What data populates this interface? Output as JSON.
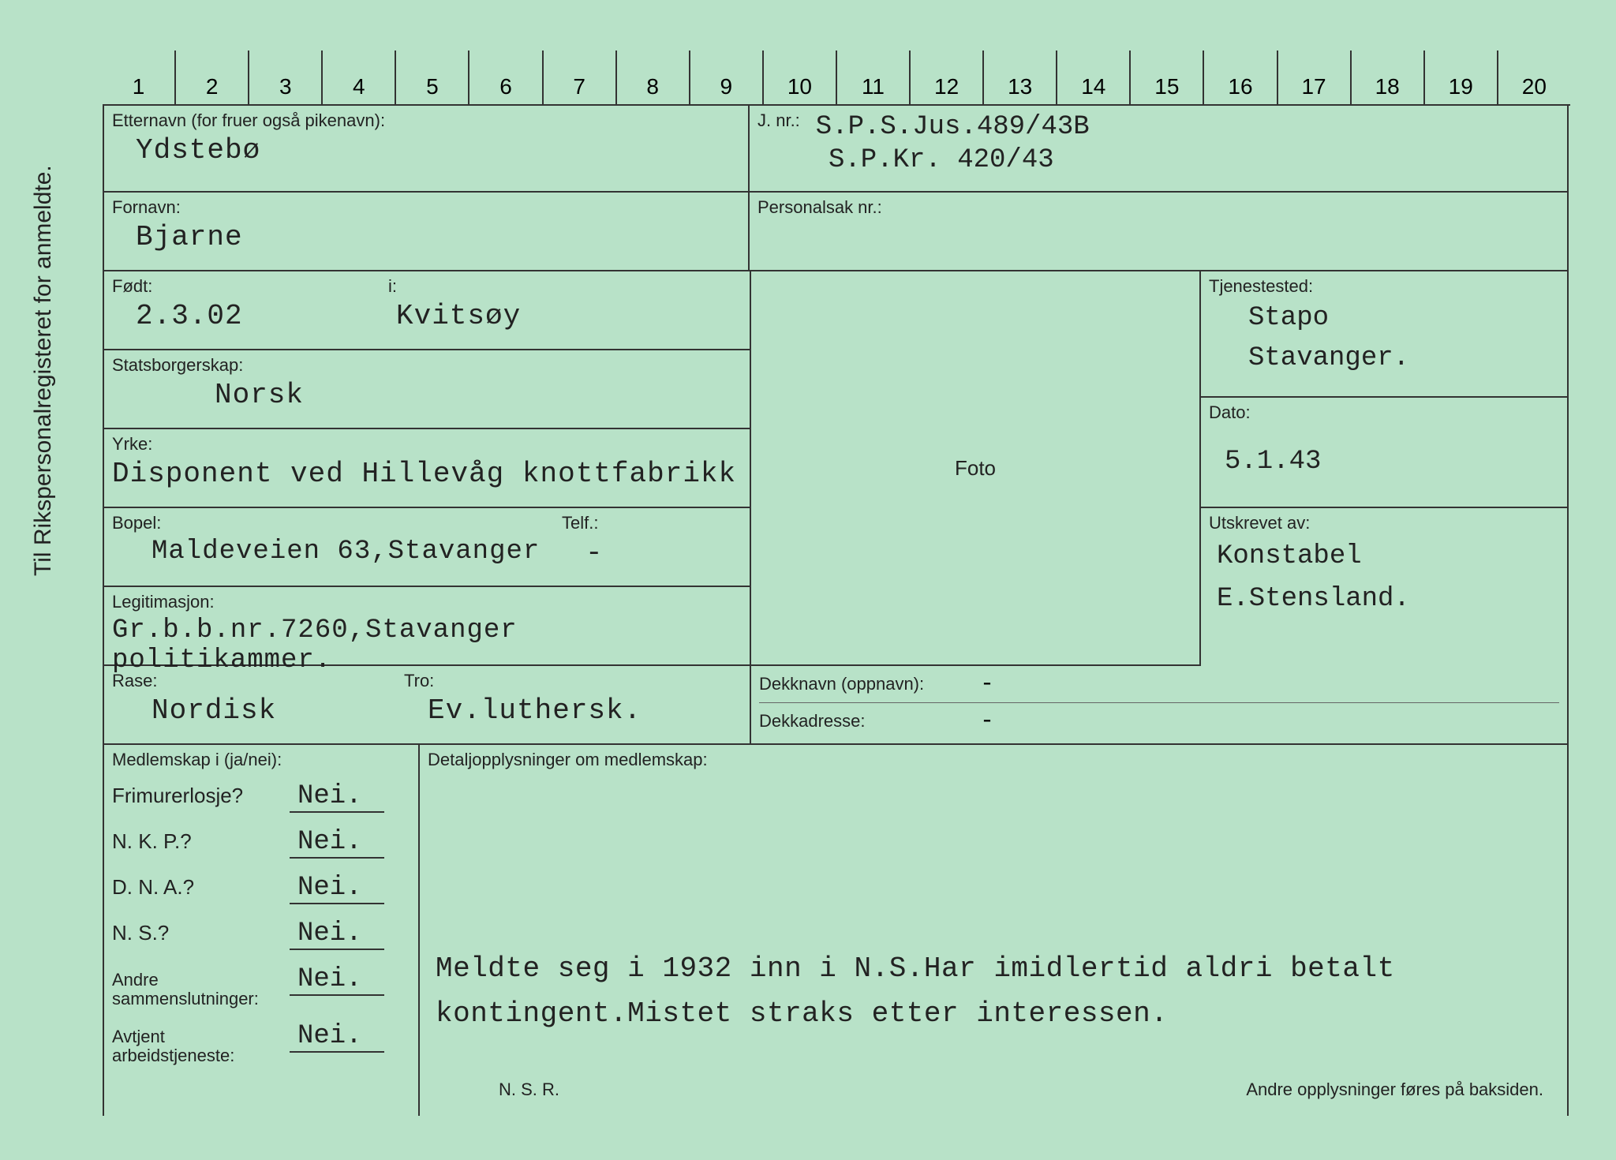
{
  "vertical_title": "Til Rikspersonalregisteret for anmeldte.",
  "ruler": {
    "start": 1,
    "end": 20
  },
  "card": {
    "etternavn": {
      "label": "Etternavn (for fruer også pikenavn):",
      "value": "Ydstebø"
    },
    "jnr": {
      "label": "J. nr.:",
      "value1": "S.P.S.Jus.489/43B",
      "value2": "S.P.Kr. 420/43"
    },
    "fornavn": {
      "label": "Fornavn:",
      "value": "Bjarne"
    },
    "personalsak": {
      "label": "Personalsak nr.:",
      "value": ""
    },
    "fodt": {
      "label": "Født:",
      "value": "2.3.02"
    },
    "fodt_i": {
      "label": "i:",
      "value": "Kvitsøy"
    },
    "tjenestested": {
      "label": "Tjenestested:",
      "value": "Stapo\nStavanger."
    },
    "statsborgerskap": {
      "label": "Statsborgerskap:",
      "value": "Norsk"
    },
    "foto": {
      "label": "Foto"
    },
    "dato": {
      "label": "Dato:",
      "value": "5.1.43"
    },
    "yrke": {
      "label": "Yrke:",
      "value": "Disponent ved Hillevåg knottfabrikk"
    },
    "utskrevet": {
      "label": "Utskrevet av:",
      "value": "Konstabel\nE.Stensland."
    },
    "bopel": {
      "label": "Bopel:",
      "value": "Maldeveien 63,Stavanger"
    },
    "telf": {
      "label": "Telf.:",
      "value": "-"
    },
    "legitimasjon": {
      "label": "Legitimasjon:",
      "value": "Gr.b.b.nr.7260,Stavanger politikammer."
    },
    "rase": {
      "label": "Rase:",
      "value": "Nordisk"
    },
    "tro": {
      "label": "Tro:",
      "value": "Ev.luthersk."
    },
    "dekknavn": {
      "label": "Dekknavn (oppnavn):",
      "value": "-"
    },
    "dekkadresse": {
      "label": "Dekkadresse:",
      "value": "-"
    },
    "medlemskap": {
      "header": "Medlemskap i (ja/nei):",
      "rows": [
        {
          "label": "Frimurerlosje?",
          "value": "Nei."
        },
        {
          "label": "N. K. P.?",
          "value": "Nei."
        },
        {
          "label": "D. N. A.?",
          "value": "Nei."
        },
        {
          "label": "N. S.?",
          "value": "Nei."
        },
        {
          "label": "Andre\nsammenslutninger:",
          "value": "Nei."
        },
        {
          "label": "Avtjent\narbeidstjeneste:",
          "value": "Nei."
        }
      ]
    },
    "detaljer": {
      "header": "Detaljopplysninger om medlemskap:",
      "text": "Meldte seg i 1932 inn i N.S.Har imidlertid aldri betalt kontingent.Mistet straks etter interessen."
    },
    "nsr": "N. S. R.",
    "footer": "Andre opplysninger føres på baksiden."
  },
  "colors": {
    "background": "#b8e2c8",
    "border": "#333333",
    "text": "#222222"
  }
}
